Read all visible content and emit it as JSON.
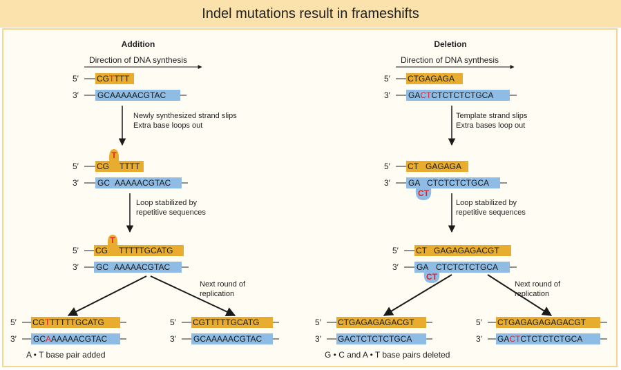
{
  "title": "Indel mutations result in frameshifts",
  "colors": {
    "title_bg": "#fbe1ab",
    "panel_border": "#f6d68e",
    "new_strand": "#e8ac2e",
    "template_strand": "#8fbce4",
    "mutation_text": "#e8202a",
    "arrow": "#1a1a1a"
  },
  "addition": {
    "heading": "Addition",
    "direction": "Direction of DNA synthesis",
    "step1": {
      "top_prime": "5′",
      "top": [
        "CG",
        "T",
        "TTT"
      ],
      "bottom_prime": "3′",
      "bottom": "GCAAAAACGTAC"
    },
    "note1": [
      "Newly synthesized strand slips",
      "Extra base loops out"
    ],
    "step2": {
      "top_prime": "5′",
      "top_left": "CG",
      "loop": "T",
      "top_right": "TTTT",
      "bottom_prime": "3′",
      "bottom_left": "GC",
      "bottom_right": "AAAAACGTAC"
    },
    "note2": [
      "Loop stabilized by",
      "repetitive sequences"
    ],
    "step3": {
      "top_prime": "5′",
      "top_left": "CG",
      "loop": "T",
      "top_right": "TTTTTGCATG",
      "bottom_prime": "3′",
      "bottom_left": "GC",
      "bottom_right": "AAAAACGTAC"
    },
    "note3": [
      "Next round of",
      "replication"
    ],
    "result_mutant": {
      "top_prime": "5′",
      "top": [
        "CG",
        "T",
        "TTTTTGCATG"
      ],
      "bottom_prime": "3′",
      "bottom": [
        "GC",
        "A",
        "AAAAACGTAC"
      ]
    },
    "result_normal": {
      "top_prime": "5′",
      "top": "CGTTTTTGCATG",
      "bottom_prime": "3′",
      "bottom": "GCAAAAACGTAC"
    },
    "caption": "A • T base pair added"
  },
  "deletion": {
    "heading": "Deletion",
    "direction": "Direction of DNA synthesis",
    "step1": {
      "top_prime": "5′",
      "top": "CTGAGAGA",
      "bottom_prime": "3′",
      "bottom": [
        "GA",
        "CT",
        "CTCTCTCTGCA"
      ]
    },
    "note1": [
      "Template strand slips",
      "Extra bases loop out"
    ],
    "step2": {
      "top_prime": "5′",
      "top_left": "CT",
      "top_right": "GAGAGA",
      "bottom_prime": "3′",
      "bottom_left": "GA",
      "loop": "CT",
      "bottom_right": "CTCTCTCTGCA"
    },
    "note2": [
      "Loop stabilized by",
      "repetitive sequences"
    ],
    "step3": {
      "top_prime": "5′",
      "top_left": "CT",
      "top_right": "GAGAGAGACGT",
      "bottom_prime": "3′",
      "bottom_left": "GA",
      "loop": "CT",
      "bottom_right": "CTCTCTCTGCA"
    },
    "note3": [
      "Next round of",
      "replication"
    ],
    "result_mutant": {
      "top_prime": "5′",
      "top": "CTGAGAGAGACGT",
      "bottom_prime": "3′",
      "bottom": "GACTCTCTCTGCA"
    },
    "result_normal": {
      "top_prime": "5′",
      "top": "CTGAGAGAGAGACGT",
      "bottom_prime": "3′",
      "bottom": [
        "GA",
        "CT",
        "CTCTCTCTGCA"
      ]
    },
    "caption": "G • C and A • T base pairs deleted"
  }
}
